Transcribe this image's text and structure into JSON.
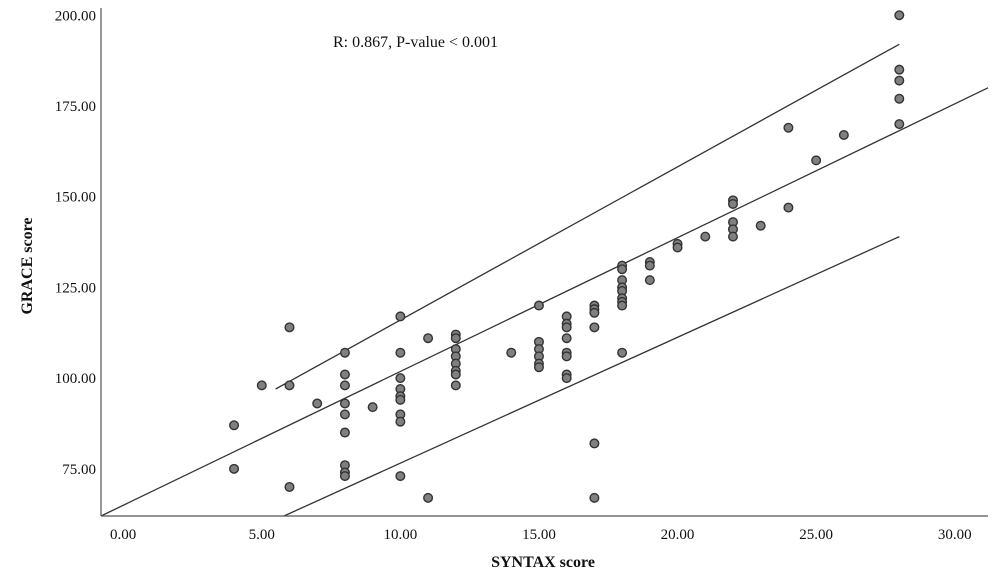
{
  "chart_data": {
    "type": "scatter",
    "title": "",
    "xlabel": "SYNTAX score",
    "ylabel": "GRACE score",
    "annotation": "R: 0.867, P-value < 0.001",
    "xlim": [
      -0.8,
      31.2
    ],
    "ylim": [
      62,
      202
    ],
    "xticks": [
      0,
      5,
      10,
      15,
      20,
      25,
      30
    ],
    "xtick_labels": [
      "0.00",
      "5.00",
      "10.00",
      "15.00",
      "20.00",
      "25.00",
      "30.00"
    ],
    "yticks": [
      75,
      100,
      125,
      150,
      175,
      200
    ],
    "ytick_labels": [
      "75.00",
      "100.00",
      "125.00",
      "150.00",
      "175.00",
      "200.00"
    ],
    "grid": false,
    "colors": {
      "point_fill": "#808080",
      "point_stroke": "#333333",
      "line": "#333333",
      "axis": "#555555"
    },
    "points": [
      {
        "x": 4,
        "y": 87
      },
      {
        "x": 4,
        "y": 75
      },
      {
        "x": 5,
        "y": 98
      },
      {
        "x": 6,
        "y": 114
      },
      {
        "x": 6,
        "y": 98
      },
      {
        "x": 6,
        "y": 70
      },
      {
        "x": 7,
        "y": 93
      },
      {
        "x": 8,
        "y": 107
      },
      {
        "x": 8,
        "y": 101
      },
      {
        "x": 8,
        "y": 98
      },
      {
        "x": 8,
        "y": 93
      },
      {
        "x": 8,
        "y": 90
      },
      {
        "x": 8,
        "y": 85
      },
      {
        "x": 8,
        "y": 76
      },
      {
        "x": 8,
        "y": 74
      },
      {
        "x": 8,
        "y": 73
      },
      {
        "x": 9,
        "y": 92
      },
      {
        "x": 10,
        "y": 117
      },
      {
        "x": 10,
        "y": 107
      },
      {
        "x": 10,
        "y": 100
      },
      {
        "x": 10,
        "y": 97
      },
      {
        "x": 10,
        "y": 95
      },
      {
        "x": 10,
        "y": 94
      },
      {
        "x": 10,
        "y": 90
      },
      {
        "x": 10,
        "y": 88
      },
      {
        "x": 10,
        "y": 73
      },
      {
        "x": 11,
        "y": 111
      },
      {
        "x": 11,
        "y": 67
      },
      {
        "x": 12,
        "y": 112
      },
      {
        "x": 12,
        "y": 111
      },
      {
        "x": 12,
        "y": 108
      },
      {
        "x": 12,
        "y": 106
      },
      {
        "x": 12,
        "y": 104
      },
      {
        "x": 12,
        "y": 102
      },
      {
        "x": 12,
        "y": 101
      },
      {
        "x": 12,
        "y": 98
      },
      {
        "x": 14,
        "y": 107
      },
      {
        "x": 15,
        "y": 120
      },
      {
        "x": 15,
        "y": 110
      },
      {
        "x": 15,
        "y": 108
      },
      {
        "x": 15,
        "y": 106
      },
      {
        "x": 15,
        "y": 104
      },
      {
        "x": 15,
        "y": 103
      },
      {
        "x": 16,
        "y": 117
      },
      {
        "x": 16,
        "y": 115
      },
      {
        "x": 16,
        "y": 114
      },
      {
        "x": 16,
        "y": 111
      },
      {
        "x": 16,
        "y": 107
      },
      {
        "x": 16,
        "y": 106
      },
      {
        "x": 16,
        "y": 101
      },
      {
        "x": 16,
        "y": 100
      },
      {
        "x": 17,
        "y": 120
      },
      {
        "x": 17,
        "y": 119
      },
      {
        "x": 17,
        "y": 118
      },
      {
        "x": 17,
        "y": 114
      },
      {
        "x": 17,
        "y": 82
      },
      {
        "x": 17,
        "y": 67
      },
      {
        "x": 18,
        "y": 131
      },
      {
        "x": 18,
        "y": 130
      },
      {
        "x": 18,
        "y": 127
      },
      {
        "x": 18,
        "y": 125
      },
      {
        "x": 18,
        "y": 124
      },
      {
        "x": 18,
        "y": 122
      },
      {
        "x": 18,
        "y": 121
      },
      {
        "x": 18,
        "y": 120
      },
      {
        "x": 18,
        "y": 107
      },
      {
        "x": 19,
        "y": 132
      },
      {
        "x": 19,
        "y": 131
      },
      {
        "x": 19,
        "y": 127
      },
      {
        "x": 20,
        "y": 137
      },
      {
        "x": 20,
        "y": 136
      },
      {
        "x": 21,
        "y": 139
      },
      {
        "x": 22,
        "y": 149
      },
      {
        "x": 22,
        "y": 148
      },
      {
        "x": 22,
        "y": 143
      },
      {
        "x": 22,
        "y": 141
      },
      {
        "x": 22,
        "y": 139
      },
      {
        "x": 23,
        "y": 142
      },
      {
        "x": 24,
        "y": 169
      },
      {
        "x": 24,
        "y": 147
      },
      {
        "x": 25,
        "y": 160
      },
      {
        "x": 26,
        "y": 167
      },
      {
        "x": 28,
        "y": 200
      },
      {
        "x": 28,
        "y": 185
      },
      {
        "x": 28,
        "y": 182
      },
      {
        "x": 28,
        "y": 177
      },
      {
        "x": 28,
        "y": 170
      }
    ],
    "lines": [
      {
        "name": "fit",
        "x": [
          -0.8,
          31.2
        ],
        "y": [
          62,
          180
        ]
      },
      {
        "name": "upper",
        "x": [
          5.5,
          28
        ],
        "y": [
          97,
          192
        ]
      },
      {
        "name": "lower",
        "x": [
          5.8,
          28
        ],
        "y": [
          62,
          139
        ]
      }
    ]
  }
}
